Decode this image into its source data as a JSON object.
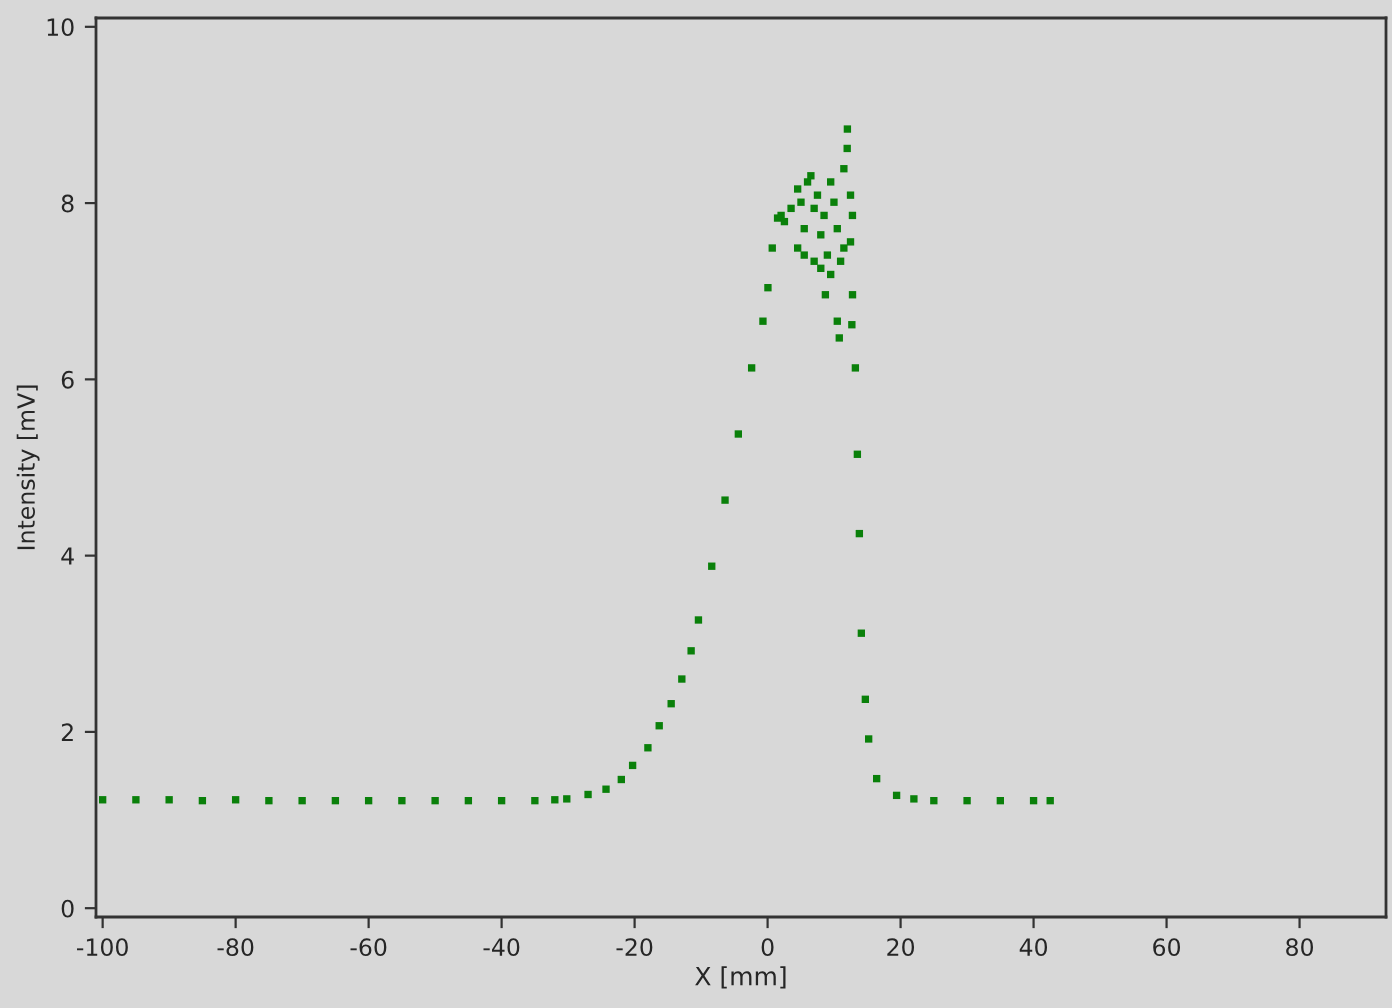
{
  "chart_data": {
    "type": "scatter",
    "xlabel": "X [mm]",
    "ylabel": "Intensity [mV]",
    "xlim": [
      -101,
      93
    ],
    "ylim": [
      -0.1,
      10.1
    ],
    "xticks": [
      -100,
      -80,
      -60,
      -40,
      -20,
      0,
      20,
      40,
      60,
      80
    ],
    "yticks": [
      0,
      2,
      4,
      6,
      8,
      10
    ],
    "grid": false,
    "legend": false,
    "marker": "square",
    "series": [
      {
        "color": "#0a800a",
        "x": [
          -100,
          -95,
          -90,
          -85,
          -80,
          -75,
          -70,
          -65,
          -60,
          -55,
          -50,
          -45,
          -40,
          -35,
          -32,
          -30.2,
          -27,
          -24.3,
          -22,
          -20.3,
          -18,
          -16.3,
          -14.5,
          -12.9,
          -11.5,
          -10.4,
          -8.4,
          -6.4,
          -4.4,
          -2.4,
          -0.7,
          0.05,
          0.7,
          1.5,
          2.03,
          2.53,
          3.53,
          4.52,
          5.02,
          5.51,
          6.01,
          6.51,
          7.0,
          7.5,
          8.0,
          8.49,
          8.99,
          9.49,
          9.98,
          10.48,
          10.98,
          11.47,
          11.97,
          12.47,
          12.76,
          8.69,
          10.48,
          10.78,
          12.77,
          12.67,
          4.52,
          5.51,
          7.0,
          8.0,
          9.49,
          11.47,
          12.47,
          12.0,
          13.2,
          13.5,
          13.8,
          14.1,
          14.7,
          15.2,
          16.4,
          19.4,
          22,
          25,
          30,
          35,
          40,
          42.5
        ],
        "values": [
          1.23,
          1.23,
          1.23,
          1.22,
          1.23,
          1.22,
          1.22,
          1.22,
          1.22,
          1.22,
          1.22,
          1.22,
          1.22,
          1.22,
          1.23,
          1.24,
          1.29,
          1.35,
          1.46,
          1.62,
          1.82,
          2.07,
          2.32,
          2.6,
          2.92,
          3.27,
          3.88,
          4.63,
          5.38,
          6.13,
          6.66,
          7.04,
          7.49,
          7.83,
          7.86,
          7.79,
          7.94,
          8.16,
          8.01,
          7.71,
          8.24,
          8.31,
          7.94,
          8.09,
          7.64,
          7.86,
          7.41,
          8.24,
          8.01,
          7.71,
          7.34,
          8.39,
          8.62,
          8.09,
          7.86,
          6.96,
          6.66,
          6.47,
          6.96,
          6.62,
          7.49,
          7.41,
          7.34,
          7.26,
          7.19,
          7.49,
          7.56,
          8.84,
          6.13,
          5.15,
          4.25,
          3.12,
          2.37,
          1.92,
          1.47,
          1.28,
          1.24,
          1.22,
          1.22,
          1.22,
          1.22,
          1.22
        ]
      }
    ]
  }
}
